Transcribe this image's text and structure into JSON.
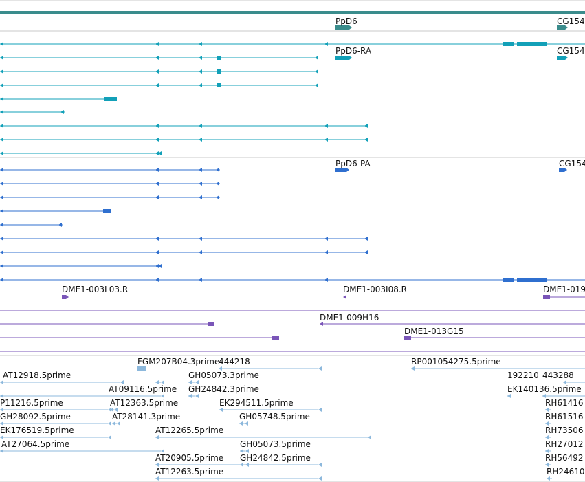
{
  "colors": {
    "gene": "#3a8c8c",
    "transcript": "#12a0b8",
    "protein": "#2f6fcf",
    "probe": "#7a55b8",
    "est": "#8cb8dc",
    "divider": "#c8c8c8"
  },
  "tracks": {
    "gene": {
      "labels": [
        "PpD6",
        "CG154"
      ]
    },
    "transcripts": {
      "labels": [
        "PpD6-RA",
        "CG154"
      ]
    },
    "proteins": {
      "labels": [
        "PpD6-PA",
        "CG154"
      ]
    },
    "probes": {
      "labels": [
        "DME1-003L03.R",
        "DME1-003I08.R",
        "DME1-019",
        "DME1-009H16",
        "DME1-013G15"
      ]
    },
    "ests": {
      "labels": [
        "FGM207B04.3prime",
        "444218",
        "RP001054275.5prime",
        "AT12918.5prime",
        "GH05073.3prime",
        "192210",
        "443288",
        "AT09116.5prime",
        "GH24842.3prime",
        "EK140136.5prime",
        "P11216.5prime",
        "AT12363.5prime",
        "EK294511.5prime",
        "RH61416",
        "GH28092.5prime",
        "AT28141.3prime",
        "GH05748.5prime",
        "RH61516",
        "EK176519.5prime",
        "AT12265.5prime",
        "RH73506",
        "AT27064.5prime",
        "GH05073.5prime",
        "RH27012",
        "AT20905.5prime",
        "GH24842.5prime",
        "RH56492",
        "AT12263.5prime",
        "RH24610"
      ]
    }
  }
}
